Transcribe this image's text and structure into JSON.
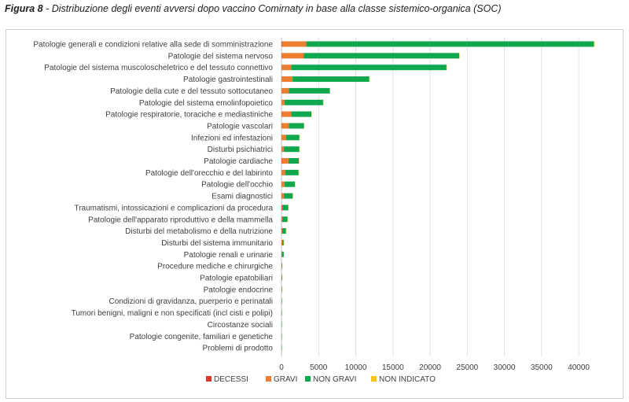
{
  "caption": {
    "figure": "Figura 8",
    "text": " - Distribuzione degli eventi avversi dopo vaccino Comirnaty in base alla classe sistemico-organica (SOC)"
  },
  "colors": {
    "decessi": "#d9372b",
    "gravi": "#ed7d31",
    "non_gravi": "#0fa84f",
    "non_indicato": "#f5c518",
    "grid": "#d9d9d9",
    "axis": "#bfbfbf"
  },
  "chart_data": {
    "type": "bar",
    "orientation": "horizontal",
    "stacked": true,
    "categories": [
      "Patologie generali e condizioni relative alla sede di somministrazione",
      "Patologie del sistema nervoso",
      "Patologie del sistema muscoloscheletrico e del tessuto connettivo",
      "Patologie gastrointestinali",
      "Patologie della cute e del tessuto sottocutaneo",
      "Patologie del sistema emolinfopoietico",
      "Patologie respiratorie, toraciche e mediastiniche",
      "Patologie vascolari",
      "Infezioni ed infestazioni",
      "Disturbi psichiatrici",
      "Patologie cardiache",
      "Patologie dell'orecchio e del labirinto",
      "Patologie dell'occhio",
      "Esami diagnostici",
      "Traumatismi, intossicazioni e complicazioni da procedura",
      "Patologie dell'apparato riproduttivo e della mammella",
      "Disturbi del metabolismo e della nutrizione",
      "Disturbi del sistema immunitario",
      "Patologie renali e urinarie",
      "Procedure mediche e chirurgiche",
      "Patologie epatobiliari",
      "Patologie endocrine",
      "Condizioni di gravidanza, puerperio e perinatali",
      "Tumori benigni, maligni e non specificati (incl cisti e polipi)",
      "Circostanze sociali",
      "Patologie congenite, familiari e genetiche",
      "Problemi di prodotto"
    ],
    "series": [
      {
        "name": "DECESSI",
        "color_key": "decessi",
        "values": [
          40,
          15,
          5,
          5,
          0,
          0,
          30,
          10,
          10,
          0,
          40,
          0,
          0,
          10,
          10,
          0,
          5,
          0,
          5,
          5,
          5,
          0,
          0,
          0,
          0,
          0,
          0
        ]
      },
      {
        "name": "GRAVI",
        "color_key": "gravi",
        "values": [
          3300,
          3000,
          1300,
          1500,
          1000,
          400,
          1300,
          1000,
          600,
          300,
          900,
          500,
          400,
          300,
          100,
          100,
          100,
          100,
          50,
          50,
          50,
          30,
          20,
          20,
          10,
          10,
          5
        ]
      },
      {
        "name": "NON GRAVI",
        "color_key": "non_gravi",
        "values": [
          38700,
          20900,
          20900,
          10300,
          5500,
          5200,
          2700,
          2000,
          1800,
          2100,
          1400,
          1800,
          1400,
          1200,
          800,
          700,
          500,
          200,
          250,
          50,
          50,
          30,
          20,
          10,
          10,
          5,
          5
        ]
      },
      {
        "name": "NON INDICATO",
        "color_key": "non_indicato",
        "values": [
          100,
          50,
          50,
          30,
          20,
          10,
          10,
          10,
          10,
          10,
          10,
          10,
          10,
          5,
          5,
          5,
          5,
          5,
          0,
          0,
          0,
          0,
          0,
          0,
          0,
          0,
          0
        ]
      }
    ],
    "xlim": [
      0,
      42000
    ],
    "xticks": [
      "0",
      "5000",
      "10000",
      "15000",
      "20000",
      "25000",
      "30000",
      "35000",
      "40000"
    ],
    "xtick_values": [
      0,
      5000,
      10000,
      15000,
      20000,
      25000,
      30000,
      35000,
      40000
    ],
    "grid": true,
    "legend_position": "bottom"
  }
}
